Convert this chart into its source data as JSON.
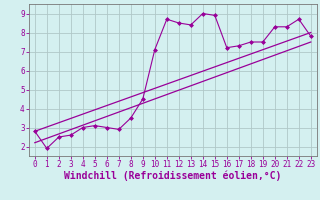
{
  "xlabel": "Windchill (Refroidissement éolien,°C)",
  "background_color": "#d4f0f0",
  "grid_color": "#b0c8c8",
  "line_color": "#990099",
  "x_data": [
    0,
    1,
    2,
    3,
    4,
    5,
    6,
    7,
    8,
    9,
    10,
    11,
    12,
    13,
    14,
    15,
    16,
    17,
    18,
    19,
    20,
    21,
    22,
    23
  ],
  "y_data": [
    2.8,
    1.9,
    2.5,
    2.6,
    3.0,
    3.1,
    3.0,
    2.9,
    3.5,
    4.5,
    7.1,
    8.7,
    8.5,
    8.4,
    9.0,
    8.9,
    7.2,
    7.3,
    7.5,
    7.5,
    8.3,
    8.3,
    8.7,
    7.8
  ],
  "reg_line1_x": [
    0,
    23
  ],
  "reg_line1_y": [
    2.2,
    7.5
  ],
  "reg_line2_x": [
    0,
    23
  ],
  "reg_line2_y": [
    2.8,
    8.0
  ],
  "xlim": [
    -0.5,
    23.5
  ],
  "ylim": [
    1.5,
    9.5
  ],
  "xticks": [
    0,
    1,
    2,
    3,
    4,
    5,
    6,
    7,
    8,
    9,
    10,
    11,
    12,
    13,
    14,
    15,
    16,
    17,
    18,
    19,
    20,
    21,
    22,
    23
  ],
  "yticks": [
    2,
    3,
    4,
    5,
    6,
    7,
    8,
    9
  ],
  "tick_fontsize": 5.5,
  "xlabel_fontsize": 7.0
}
